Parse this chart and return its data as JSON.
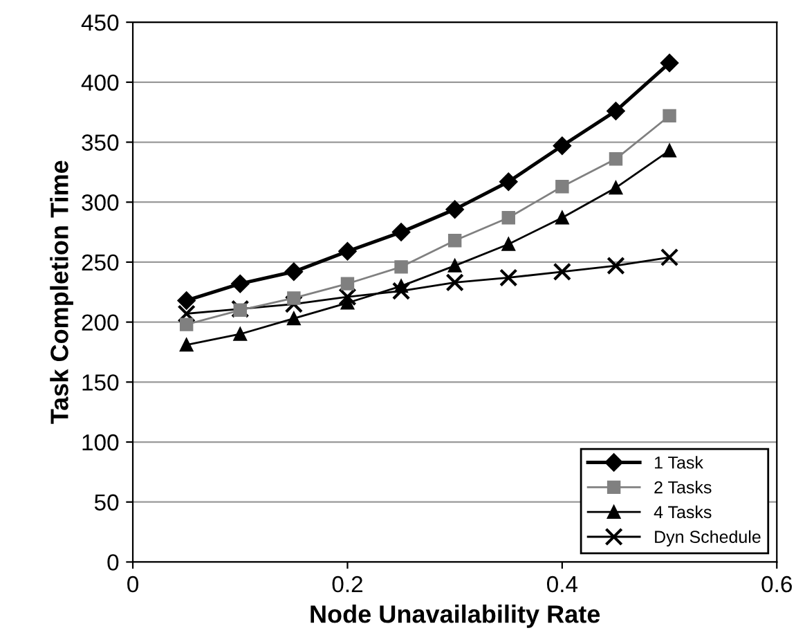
{
  "chart_data": {
    "type": "line",
    "xlabel": "Node Unavailability Rate",
    "ylabel": "Task Completion Time",
    "x": [
      0.05,
      0.1,
      0.15,
      0.2,
      0.25,
      0.3,
      0.35,
      0.4,
      0.45,
      0.5
    ],
    "series": [
      {
        "name": "1 Task",
        "color": "#000000",
        "marker": "diamond",
        "values": [
          218,
          232,
          242,
          259,
          275,
          294,
          317,
          347,
          376,
          416
        ]
      },
      {
        "name": "2 Tasks",
        "color": "#808080",
        "marker": "square",
        "values": [
          198,
          210,
          220,
          232,
          246,
          268,
          287,
          313,
          336,
          372
        ]
      },
      {
        "name": "4 Tasks",
        "color": "#000000",
        "marker": "triangle",
        "values": [
          181,
          190,
          203,
          216,
          230,
          247,
          265,
          287,
          312,
          343
        ]
      },
      {
        "name": "Dyn Schedule",
        "color": "#000000",
        "marker": "cross",
        "values": [
          207,
          211,
          215,
          221,
          226,
          233,
          237,
          242,
          247,
          254
        ]
      }
    ],
    "xlim": [
      0,
      0.6
    ],
    "xticks": [
      0,
      0.2,
      0.4,
      0.6
    ],
    "ylim": [
      0,
      450
    ],
    "yticks": [
      0,
      50,
      100,
      150,
      200,
      250,
      300,
      350,
      400,
      450
    ],
    "grid": "y",
    "legend": "bottom right",
    "line_style": "solid"
  }
}
